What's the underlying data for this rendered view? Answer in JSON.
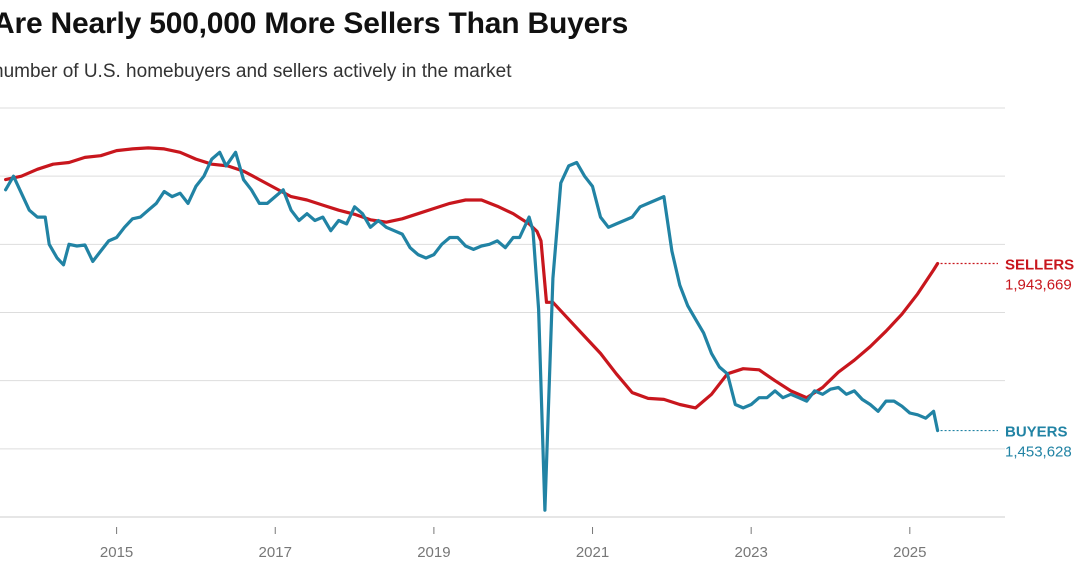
{
  "chart_data": {
    "type": "line",
    "title": "Are Nearly 500,000 More Sellers Than Buyers",
    "subtitle": "number of U.S. homebuyers and sellers actively in the market",
    "xlabel": "",
    "ylabel": "",
    "xlim": [
      2013.53,
      2026.2
    ],
    "ylim": [
      1.2,
      2.4
    ],
    "gridlines_y": [
      1.2,
      1.4,
      1.6,
      1.8,
      2.0,
      2.2,
      2.4
    ],
    "x_ticks": [
      2015,
      2017,
      2019,
      2021,
      2023,
      2025
    ],
    "x_tick_labels": [
      "2015",
      "2017",
      "2019",
      "2021",
      "2023",
      "2025"
    ],
    "series": [
      {
        "name": "SELLERS",
        "label": "SELLERS",
        "end_value_label": "1,943,669",
        "color": "#c8161d",
        "points": [
          [
            2013.6,
            2.19
          ],
          [
            2013.8,
            2.2
          ],
          [
            2014.0,
            2.22
          ],
          [
            2014.2,
            2.235
          ],
          [
            2014.4,
            2.24
          ],
          [
            2014.6,
            2.255
          ],
          [
            2014.8,
            2.26
          ],
          [
            2015.0,
            2.275
          ],
          [
            2015.2,
            2.28
          ],
          [
            2015.4,
            2.283
          ],
          [
            2015.6,
            2.28
          ],
          [
            2015.8,
            2.27
          ],
          [
            2016.0,
            2.25
          ],
          [
            2016.2,
            2.235
          ],
          [
            2016.4,
            2.23
          ],
          [
            2016.6,
            2.215
          ],
          [
            2016.8,
            2.19
          ],
          [
            2017.0,
            2.165
          ],
          [
            2017.2,
            2.14
          ],
          [
            2017.4,
            2.13
          ],
          [
            2017.6,
            2.115
          ],
          [
            2017.8,
            2.1
          ],
          [
            2018.0,
            2.088
          ],
          [
            2018.2,
            2.072
          ],
          [
            2018.4,
            2.065
          ],
          [
            2018.6,
            2.075
          ],
          [
            2018.8,
            2.09
          ],
          [
            2019.0,
            2.105
          ],
          [
            2019.2,
            2.12
          ],
          [
            2019.4,
            2.13
          ],
          [
            2019.6,
            2.13
          ],
          [
            2019.8,
            2.112
          ],
          [
            2020.0,
            2.09
          ],
          [
            2020.1,
            2.075
          ],
          [
            2020.2,
            2.06
          ],
          [
            2020.3,
            2.038
          ],
          [
            2020.35,
            2.01
          ],
          [
            2020.42,
            1.83
          ],
          [
            2020.5,
            1.83
          ],
          [
            2020.7,
            1.78
          ],
          [
            2020.9,
            1.73
          ],
          [
            2021.1,
            1.68
          ],
          [
            2021.3,
            1.62
          ],
          [
            2021.5,
            1.565
          ],
          [
            2021.7,
            1.548
          ],
          [
            2021.9,
            1.545
          ],
          [
            2022.1,
            1.53
          ],
          [
            2022.3,
            1.52
          ],
          [
            2022.5,
            1.56
          ],
          [
            2022.7,
            1.62
          ],
          [
            2022.9,
            1.635
          ],
          [
            2023.1,
            1.632
          ],
          [
            2023.3,
            1.6
          ],
          [
            2023.5,
            1.57
          ],
          [
            2023.7,
            1.55
          ],
          [
            2023.9,
            1.58
          ],
          [
            2024.1,
            1.625
          ],
          [
            2024.3,
            1.66
          ],
          [
            2024.5,
            1.7
          ],
          [
            2024.7,
            1.745
          ],
          [
            2024.9,
            1.795
          ],
          [
            2025.1,
            1.855
          ],
          [
            2025.3,
            1.925
          ],
          [
            2025.35,
            1.943669
          ]
        ]
      },
      {
        "name": "BUYERS",
        "label": "BUYERS",
        "end_value_label": "1,453,628",
        "color": "#2183a4",
        "points": [
          [
            2013.6,
            2.16
          ],
          [
            2013.7,
            2.2
          ],
          [
            2013.8,
            2.15
          ],
          [
            2013.9,
            2.1
          ],
          [
            2014.0,
            2.08
          ],
          [
            2014.1,
            2.08
          ],
          [
            2014.15,
            2.0
          ],
          [
            2014.25,
            1.96
          ],
          [
            2014.33,
            1.94
          ],
          [
            2014.4,
            2.0
          ],
          [
            2014.5,
            1.995
          ],
          [
            2014.6,
            1.998
          ],
          [
            2014.7,
            1.95
          ],
          [
            2014.8,
            1.98
          ],
          [
            2014.9,
            2.01
          ],
          [
            2015.0,
            2.02
          ],
          [
            2015.1,
            2.05
          ],
          [
            2015.2,
            2.075
          ],
          [
            2015.3,
            2.08
          ],
          [
            2015.4,
            2.1
          ],
          [
            2015.5,
            2.12
          ],
          [
            2015.6,
            2.155
          ],
          [
            2015.7,
            2.14
          ],
          [
            2015.8,
            2.15
          ],
          [
            2015.9,
            2.12
          ],
          [
            2016.0,
            2.17
          ],
          [
            2016.1,
            2.2
          ],
          [
            2016.2,
            2.25
          ],
          [
            2016.3,
            2.27
          ],
          [
            2016.38,
            2.23
          ],
          [
            2016.5,
            2.27
          ],
          [
            2016.6,
            2.19
          ],
          [
            2016.7,
            2.16
          ],
          [
            2016.8,
            2.12
          ],
          [
            2016.9,
            2.12
          ],
          [
            2017.0,
            2.14
          ],
          [
            2017.1,
            2.16
          ],
          [
            2017.2,
            2.1
          ],
          [
            2017.3,
            2.07
          ],
          [
            2017.4,
            2.09
          ],
          [
            2017.5,
            2.07
          ],
          [
            2017.6,
            2.08
          ],
          [
            2017.7,
            2.04
          ],
          [
            2017.8,
            2.07
          ],
          [
            2017.9,
            2.06
          ],
          [
            2018.0,
            2.11
          ],
          [
            2018.1,
            2.09
          ],
          [
            2018.2,
            2.05
          ],
          [
            2018.3,
            2.07
          ],
          [
            2018.4,
            2.05
          ],
          [
            2018.5,
            2.04
          ],
          [
            2018.6,
            2.03
          ],
          [
            2018.7,
            1.99
          ],
          [
            2018.8,
            1.97
          ],
          [
            2018.9,
            1.96
          ],
          [
            2019.0,
            1.97
          ],
          [
            2019.1,
            2.0
          ],
          [
            2019.2,
            2.02
          ],
          [
            2019.3,
            2.02
          ],
          [
            2019.4,
            1.995
          ],
          [
            2019.5,
            1.985
          ],
          [
            2019.6,
            1.995
          ],
          [
            2019.7,
            2.0
          ],
          [
            2019.8,
            2.01
          ],
          [
            2019.9,
            1.99
          ],
          [
            2020.0,
            2.02
          ],
          [
            2020.08,
            2.02
          ],
          [
            2020.2,
            2.08
          ],
          [
            2020.25,
            2.04
          ],
          [
            2020.32,
            1.81
          ],
          [
            2020.4,
            1.22
          ],
          [
            2020.5,
            1.9
          ],
          [
            2020.6,
            2.18
          ],
          [
            2020.7,
            2.23
          ],
          [
            2020.8,
            2.24
          ],
          [
            2020.9,
            2.2
          ],
          [
            2021.0,
            2.17
          ],
          [
            2021.1,
            2.08
          ],
          [
            2021.2,
            2.05
          ],
          [
            2021.3,
            2.06
          ],
          [
            2021.4,
            2.07
          ],
          [
            2021.5,
            2.08
          ],
          [
            2021.6,
            2.11
          ],
          [
            2021.7,
            2.12
          ],
          [
            2021.8,
            2.13
          ],
          [
            2021.9,
            2.14
          ],
          [
            2022.0,
            1.98
          ],
          [
            2022.1,
            1.88
          ],
          [
            2022.2,
            1.82
          ],
          [
            2022.3,
            1.78
          ],
          [
            2022.4,
            1.74
          ],
          [
            2022.5,
            1.68
          ],
          [
            2022.6,
            1.64
          ],
          [
            2022.7,
            1.62
          ],
          [
            2022.8,
            1.53
          ],
          [
            2022.9,
            1.52
          ],
          [
            2023.0,
            1.53
          ],
          [
            2023.1,
            1.55
          ],
          [
            2023.2,
            1.55
          ],
          [
            2023.3,
            1.57
          ],
          [
            2023.4,
            1.55
          ],
          [
            2023.5,
            1.56
          ],
          [
            2023.6,
            1.55
          ],
          [
            2023.7,
            1.54
          ],
          [
            2023.8,
            1.57
          ],
          [
            2023.9,
            1.56
          ],
          [
            2024.0,
            1.575
          ],
          [
            2024.1,
            1.58
          ],
          [
            2024.2,
            1.56
          ],
          [
            2024.3,
            1.57
          ],
          [
            2024.4,
            1.545
          ],
          [
            2024.5,
            1.53
          ],
          [
            2024.6,
            1.51
          ],
          [
            2024.7,
            1.54
          ],
          [
            2024.8,
            1.54
          ],
          [
            2024.9,
            1.525
          ],
          [
            2025.0,
            1.505
          ],
          [
            2025.1,
            1.5
          ],
          [
            2025.2,
            1.49
          ],
          [
            2025.3,
            1.51
          ],
          [
            2025.35,
            1.453628
          ]
        ]
      }
    ]
  }
}
